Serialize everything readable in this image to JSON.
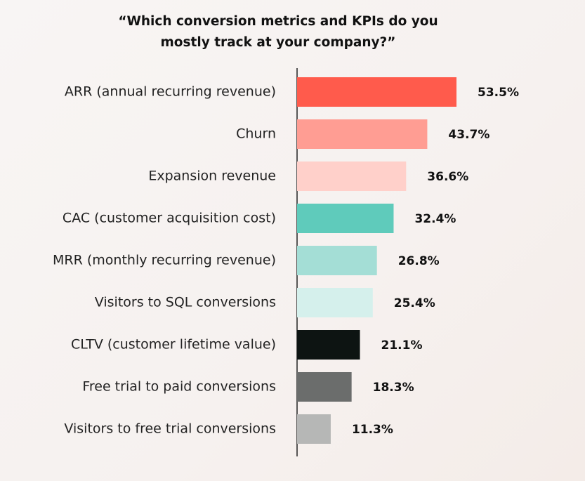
{
  "chart_data": {
    "type": "bar",
    "orientation": "horizontal",
    "title": "“Which conversion metrics and KPIs do you mostly track at your company?”",
    "categories": [
      "ARR (annual recurring revenue)",
      "Churn",
      "Expansion revenue",
      "CAC (customer acquisition cost)",
      "MRR (monthly recurring revenue)",
      "Visitors to SQL conversions",
      "CLTV (customer lifetime value)",
      "Free trial to paid conversions",
      "Visitors to free trial conversions"
    ],
    "values": [
      53.5,
      43.7,
      36.6,
      32.4,
      26.8,
      25.4,
      21.1,
      18.3,
      11.3
    ],
    "value_labels": [
      "53.5%",
      "43.7%",
      "36.6%",
      "32.4%",
      "26.8%",
      "25.4%",
      "21.1%",
      "18.3%",
      "11.3%"
    ],
    "colors": [
      "#ff5b4c",
      "#ff9d93",
      "#ffd0ca",
      "#5fcbbb",
      "#a4ded6",
      "#d5f0ec",
      "#0d1412",
      "#6b6d6c",
      "#b6b7b6"
    ]
  }
}
